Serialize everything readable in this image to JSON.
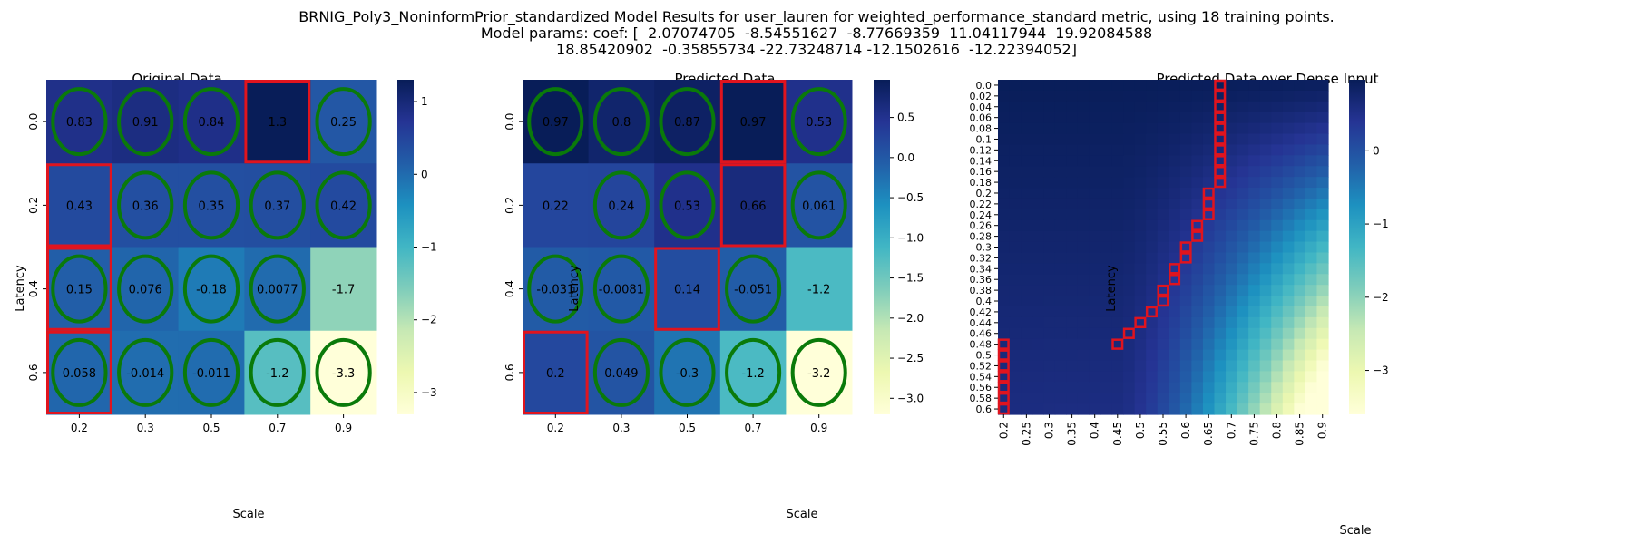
{
  "figure": {
    "title_lines": [
      "BRNIG_Poly3_NoninformPrior_standardized Model Results for user_lauren for weighted_performance_standard metric, using 18 training points.",
      "Model params: coef: [  2.07074705  -8.54551627  -8.77669359  11.04117944  19.92084588",
      "18.85420902  -0.35855734 -22.73248714 -12.1502616  -12.22394052]"
    ]
  },
  "colormap": {
    "name": "YlGnBu",
    "stops": [
      "#ffffd9",
      "#edf8b1",
      "#c7e9b4",
      "#7fcdbb",
      "#41b6c4",
      "#1d91c0",
      "#225ea8",
      "#253494",
      "#081d58"
    ]
  },
  "colors": {
    "marker_circle": "#0a7a0a",
    "marker_box": "#e0141e",
    "grid_white": "#ffffff"
  },
  "chart_data": [
    {
      "type": "heatmap",
      "title": "Original Data",
      "xlabel": "Scale",
      "ylabel": "Latency",
      "x_categories": [
        "0.2",
        "0.3",
        "0.5",
        "0.7",
        "0.9"
      ],
      "y_categories": [
        "0.0",
        "0.2",
        "0.4",
        "0.6"
      ],
      "values": [
        [
          0.83,
          0.91,
          0.84,
          1.3,
          0.25
        ],
        [
          0.43,
          0.36,
          0.35,
          0.37,
          0.42
        ],
        [
          0.15,
          0.076,
          -0.18,
          0.0077,
          -1.7
        ],
        [
          0.058,
          -0.014,
          -0.011,
          -1.2,
          -3.3
        ]
      ],
      "value_labels": [
        [
          "0.83",
          "0.91",
          "0.84",
          "1.3",
          "0.25"
        ],
        [
          "0.43",
          "0.36",
          "0.35",
          "0.37",
          "0.42"
        ],
        [
          "0.15",
          "0.076",
          "-0.18",
          "0.0077",
          "-1.7"
        ],
        [
          "0.058",
          "-0.014",
          "-0.011",
          "-1.2",
          "-3.3"
        ]
      ],
      "color_range": [
        -3.3,
        1.3
      ],
      "colorbar_ticks": [
        1,
        0,
        -1,
        -2,
        -3
      ],
      "colorbar_tick_labels": [
        "1",
        "0",
        "−1",
        "−2",
        "−3"
      ],
      "circled_cells": [
        [
          0,
          0
        ],
        [
          0,
          1
        ],
        [
          0,
          2
        ],
        [
          0,
          4
        ],
        [
          1,
          1
        ],
        [
          1,
          2
        ],
        [
          1,
          3
        ],
        [
          1,
          4
        ],
        [
          2,
          0
        ],
        [
          2,
          1
        ],
        [
          2,
          2
        ],
        [
          2,
          3
        ],
        [
          3,
          0
        ],
        [
          3,
          1
        ],
        [
          3,
          2
        ],
        [
          3,
          3
        ],
        [
          3,
          4
        ]
      ],
      "boxed_cells": [
        [
          0,
          3
        ],
        [
          1,
          0
        ],
        [
          2,
          0
        ],
        [
          3,
          0
        ]
      ]
    },
    {
      "type": "heatmap",
      "title": "Predicted Data",
      "xlabel": "Scale",
      "ylabel": "Latency",
      "x_categories": [
        "0.2",
        "0.3",
        "0.5",
        "0.7",
        "0.9"
      ],
      "y_categories": [
        "0.0",
        "0.2",
        "0.4",
        "0.6"
      ],
      "values": [
        [
          0.97,
          0.8,
          0.87,
          0.97,
          0.53
        ],
        [
          0.22,
          0.24,
          0.53,
          0.66,
          0.061
        ],
        [
          -0.031,
          -0.0081,
          0.14,
          -0.051,
          -1.2
        ],
        [
          0.2,
          0.049,
          -0.3,
          -1.2,
          -3.2
        ]
      ],
      "value_labels": [
        [
          "0.97",
          "0.8",
          "0.87",
          "0.97",
          "0.53"
        ],
        [
          "0.22",
          "0.24",
          "0.53",
          "0.66",
          "0.061"
        ],
        [
          "-0.031",
          "-0.0081",
          "0.14",
          "-0.051",
          "-1.2"
        ],
        [
          "0.2",
          "0.049",
          "-0.3",
          "-1.2",
          "-3.2"
        ]
      ],
      "color_range": [
        -3.2,
        0.97
      ],
      "colorbar_ticks": [
        0.5,
        0,
        -0.5,
        -1,
        -1.5,
        -2,
        -2.5,
        -3
      ],
      "colorbar_tick_labels": [
        "0.5",
        "0.0",
        "−0.5",
        "−1.0",
        "−1.5",
        "−2.0",
        "−2.5",
        "−3.0"
      ],
      "circled_cells": [
        [
          0,
          0
        ],
        [
          0,
          1
        ],
        [
          0,
          2
        ],
        [
          0,
          4
        ],
        [
          1,
          1
        ],
        [
          1,
          2
        ],
        [
          1,
          4
        ],
        [
          2,
          0
        ],
        [
          2,
          1
        ],
        [
          2,
          3
        ],
        [
          3,
          1
        ],
        [
          3,
          2
        ],
        [
          3,
          3
        ],
        [
          3,
          4
        ]
      ],
      "boxed_cells": [
        [
          0,
          3
        ],
        [
          1,
          3
        ],
        [
          2,
          2
        ],
        [
          3,
          0
        ]
      ]
    },
    {
      "type": "heatmap",
      "title": "Predicted Data over Dense Input",
      "xlabel": "Scale",
      "ylabel": "Latency",
      "x_range": [
        0.2,
        0.9
      ],
      "x_step": 0.05,
      "x_tick_labels": [
        "0.2",
        "0.25",
        "0.3",
        "0.35",
        "0.4",
        "0.45",
        "0.5",
        "0.55",
        "0.6",
        "0.65",
        "0.7",
        "0.75",
        "0.8",
        "0.85",
        "0.9"
      ],
      "y_range": [
        0.0,
        0.6
      ],
      "y_step": 0.02,
      "y_tick_labels": [
        "0.0",
        "0.02",
        "0.04",
        "0.06",
        "0.08",
        "0.1",
        "0.12",
        "0.14",
        "0.16",
        "0.18",
        "0.2",
        "0.22",
        "0.24",
        "0.26",
        "0.28",
        "0.3",
        "0.32",
        "0.34",
        "0.36",
        "0.38",
        "0.4",
        "0.42",
        "0.44",
        "0.46",
        "0.48",
        "0.5",
        "0.52",
        "0.54",
        "0.56",
        "0.58",
        "0.6"
      ],
      "color_range": [
        -3.6,
        0.97
      ],
      "colorbar_ticks": [
        0,
        -1,
        -2,
        -3
      ],
      "colorbar_tick_labels": [
        "0",
        "−1",
        "−2",
        "−3"
      ],
      "optimal_path": [
        {
          "latency": 0.0,
          "scale": 0.675
        },
        {
          "latency": 0.02,
          "scale": 0.675
        },
        {
          "latency": 0.04,
          "scale": 0.675
        },
        {
          "latency": 0.06,
          "scale": 0.675
        },
        {
          "latency": 0.08,
          "scale": 0.675
        },
        {
          "latency": 0.1,
          "scale": 0.675
        },
        {
          "latency": 0.12,
          "scale": 0.675
        },
        {
          "latency": 0.14,
          "scale": 0.675
        },
        {
          "latency": 0.16,
          "scale": 0.675
        },
        {
          "latency": 0.18,
          "scale": 0.675
        },
        {
          "latency": 0.2,
          "scale": 0.65
        },
        {
          "latency": 0.22,
          "scale": 0.65
        },
        {
          "latency": 0.24,
          "scale": 0.65
        },
        {
          "latency": 0.26,
          "scale": 0.625
        },
        {
          "latency": 0.28,
          "scale": 0.625
        },
        {
          "latency": 0.3,
          "scale": 0.6
        },
        {
          "latency": 0.32,
          "scale": 0.6
        },
        {
          "latency": 0.34,
          "scale": 0.575
        },
        {
          "latency": 0.36,
          "scale": 0.575
        },
        {
          "latency": 0.38,
          "scale": 0.55
        },
        {
          "latency": 0.4,
          "scale": 0.55
        },
        {
          "latency": 0.42,
          "scale": 0.525
        },
        {
          "latency": 0.44,
          "scale": 0.5
        },
        {
          "latency": 0.46,
          "scale": 0.475
        },
        {
          "latency": 0.47,
          "scale": 0.45
        },
        {
          "latency": 0.48,
          "scale": 0.2
        },
        {
          "latency": 0.5,
          "scale": 0.2
        },
        {
          "latency": 0.52,
          "scale": 0.2
        },
        {
          "latency": 0.54,
          "scale": 0.2
        },
        {
          "latency": 0.56,
          "scale": 0.2
        },
        {
          "latency": 0.58,
          "scale": 0.2
        },
        {
          "latency": 0.6,
          "scale": 0.2
        }
      ]
    }
  ]
}
